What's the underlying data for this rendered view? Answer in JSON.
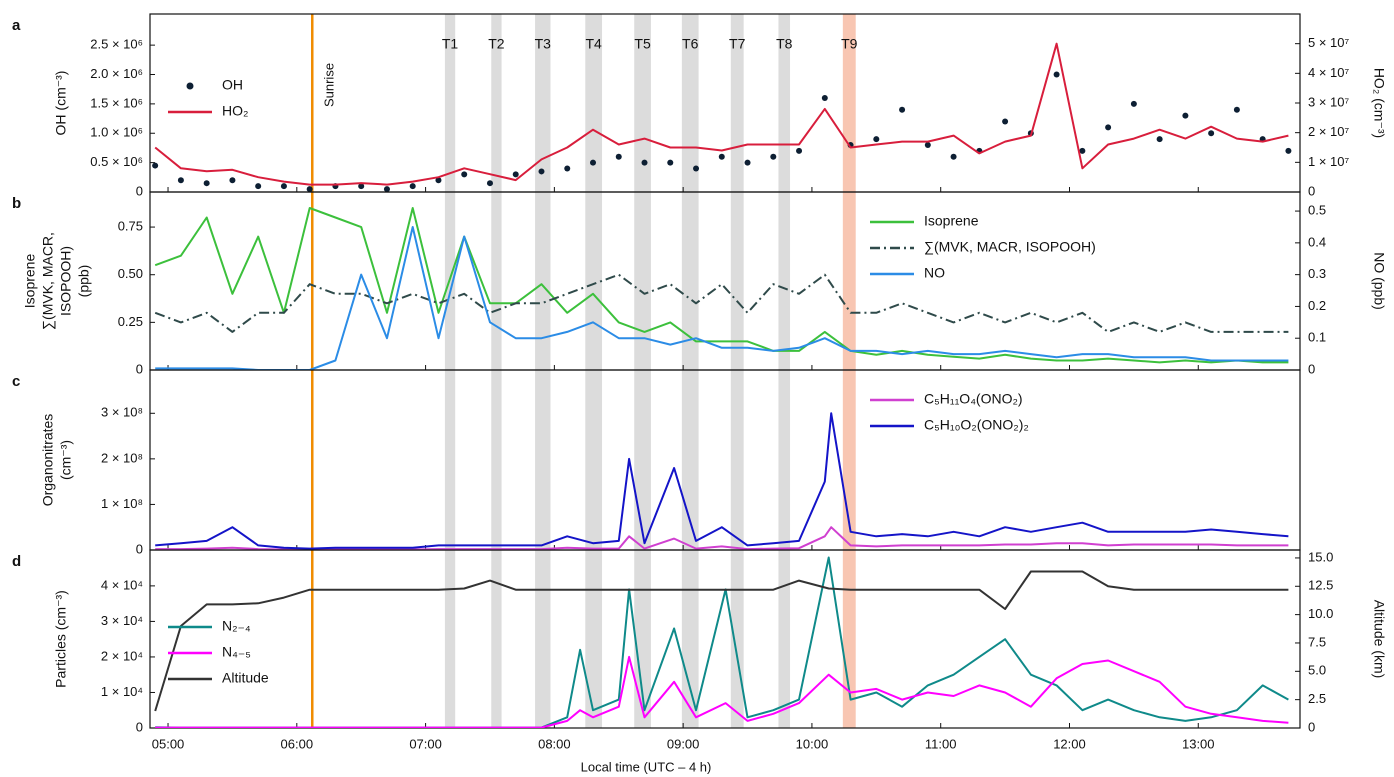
{
  "sunrise": {
    "x": 6.12,
    "label": "Sunrise",
    "color": "#f08c00"
  },
  "transects": [
    {
      "label": "T1",
      "start": 7.15,
      "end": 7.23,
      "color": "#dcdcdc"
    },
    {
      "label": "T2",
      "start": 7.51,
      "end": 7.59,
      "color": "#dcdcdc"
    },
    {
      "label": "T3",
      "start": 7.85,
      "end": 7.97,
      "color": "#dcdcdc"
    },
    {
      "label": "T4",
      "start": 8.24,
      "end": 8.37,
      "color": "#dcdcdc"
    },
    {
      "label": "T5",
      "start": 8.62,
      "end": 8.75,
      "color": "#dcdcdc"
    },
    {
      "label": "T6",
      "start": 8.99,
      "end": 9.12,
      "color": "#dcdcdc"
    },
    {
      "label": "T7",
      "start": 9.37,
      "end": 9.47,
      "color": "#dcdcdc"
    },
    {
      "label": "T8",
      "start": 9.74,
      "end": 9.83,
      "color": "#dcdcdc"
    },
    {
      "label": "T9",
      "start": 10.24,
      "end": 10.34,
      "color": "#f8c6b2"
    }
  ],
  "chart_data": [
    {
      "type": "line",
      "label": "a",
      "ylabel": [
        "OH (cm⁻³)"
      ],
      "y2label": "HO₂ (cm⁻³)",
      "legend": "center left",
      "xlim": [
        4.86,
        13.79
      ],
      "ylim": [
        0,
        3030000.0
      ],
      "y2lim": [
        0,
        60000000.0
      ],
      "yticks": [
        0,
        {
          "value": 500000.0,
          "label": "0.5 × 10⁶"
        },
        {
          "value": 1000000.0,
          "label": "1.0 × 10⁶"
        },
        {
          "value": 1500000.0,
          "label": "1.5 × 10⁶"
        },
        {
          "value": 2000000.0,
          "label": "2.0 × 10⁶"
        },
        {
          "value": 2500000.0,
          "label": "2.5 × 10⁶"
        }
      ],
      "y2ticks": [
        0,
        {
          "value": 10000000.0,
          "label": "1 × 10⁷"
        },
        {
          "value": 20000000.0,
          "label": "2 × 10⁷"
        },
        {
          "value": 30000000.0,
          "label": "3 × 10⁷"
        },
        {
          "value": 40000000.0,
          "label": "4 × 10⁷"
        },
        {
          "value": 50000000.0,
          "label": "5 × 10⁷"
        }
      ],
      "x": [
        4.9,
        5.1,
        5.3,
        5.5,
        5.7,
        5.9,
        6.1,
        6.3,
        6.5,
        6.7,
        6.9,
        7.1,
        7.3,
        7.5,
        7.7,
        7.9,
        8.1,
        8.3,
        8.5,
        8.7,
        8.9,
        9.1,
        9.3,
        9.5,
        9.7,
        9.9,
        10.1,
        10.3,
        10.5,
        10.7,
        10.9,
        11.1,
        11.3,
        11.5,
        11.7,
        11.9,
        12.1,
        12.3,
        12.5,
        12.7,
        12.9,
        13.1,
        13.3,
        13.5,
        13.7
      ],
      "series": [
        {
          "name": "OH",
          "color": "#0d1f33",
          "mark": "scatter",
          "values": [
            450000.0,
            200000.0,
            150000.0,
            200000.0,
            100000.0,
            100000.0,
            50000.0,
            100000.0,
            100000.0,
            50000.0,
            100000.0,
            200000.0,
            300000.0,
            150000.0,
            300000.0,
            350000.0,
            400000.0,
            500000.0,
            600000.0,
            500000.0,
            500000.0,
            400000.0,
            600000.0,
            500000.0,
            600000.0,
            700000.0,
            1600000.0,
            800000.0,
            900000.0,
            1400000.0,
            800000.0,
            600000.0,
            700000.0,
            1200000.0,
            1000000.0,
            2000000.0,
            700000.0,
            1100000.0,
            1500000.0,
            900000.0,
            1300000.0,
            1000000.0,
            1400000.0,
            900000.0,
            700000.0
          ]
        },
        {
          "name": "HO₂",
          "color": "#d81e3c",
          "axis": "y2",
          "values": [
            15000000.0,
            8000000.0,
            7000000.0,
            7500000.0,
            5000000.0,
            3500000.0,
            2500000.0,
            2500000.0,
            3000000.0,
            2500000.0,
            3500000.0,
            5000000.0,
            8000000.0,
            6000000.0,
            4000000.0,
            11000000.0,
            15000000.0,
            21000000.0,
            16000000.0,
            18000000.0,
            15000000.0,
            15000000.0,
            14000000.0,
            16000000.0,
            16000000.0,
            16000000.0,
            28000000.0,
            15000000.0,
            16000000.0,
            17000000.0,
            17000000.0,
            19000000.0,
            13000000.0,
            17000000.0,
            19000000.0,
            50000000.0,
            8000000.0,
            16000000.0,
            18000000.0,
            21000000.0,
            18000000.0,
            22000000.0,
            18000000.0,
            17000000.0,
            19000000.0
          ]
        }
      ]
    },
    {
      "type": "line",
      "label": "b",
      "ylabel": [
        "Isoprene",
        "∑(MVK, MACR,",
        "ISOPOOH)",
        "(ppb)"
      ],
      "y2label": "NO (ppb)",
      "legend": "upper right",
      "xlim": [
        4.86,
        13.79
      ],
      "ylim": [
        0,
        0.934
      ],
      "y2lim": [
        0,
        0.56
      ],
      "yticks": [
        0,
        0.25,
        {
          "value": 0.5,
          "label": "0.50"
        },
        0.75
      ],
      "y2ticks": [
        0,
        0.1,
        0.2,
        0.3,
        0.4,
        0.5
      ],
      "x": [
        4.9,
        5.1,
        5.3,
        5.5,
        5.7,
        5.9,
        6.1,
        6.3,
        6.5,
        6.7,
        6.9,
        7.1,
        7.3,
        7.5,
        7.7,
        7.9,
        8.1,
        8.3,
        8.5,
        8.7,
        8.9,
        9.1,
        9.3,
        9.5,
        9.7,
        9.9,
        10.1,
        10.3,
        10.5,
        10.7,
        10.9,
        11.1,
        11.3,
        11.5,
        11.7,
        11.9,
        12.1,
        12.3,
        12.5,
        12.7,
        12.9,
        13.1,
        13.3,
        13.5,
        13.7
      ],
      "series": [
        {
          "name": "Isoprene",
          "color": "#3cc03c",
          "values": [
            0.55,
            0.6,
            0.8,
            0.4,
            0.7,
            0.3,
            0.85,
            0.8,
            0.75,
            0.3,
            0.85,
            0.3,
            0.7,
            0.35,
            0.35,
            0.45,
            0.3,
            0.4,
            0.25,
            0.2,
            0.25,
            0.15,
            0.15,
            0.15,
            0.1,
            0.1,
            0.2,
            0.1,
            0.08,
            0.1,
            0.08,
            0.07,
            0.06,
            0.08,
            0.06,
            0.05,
            0.05,
            0.06,
            0.05,
            0.04,
            0.05,
            0.04,
            0.05,
            0.04,
            0.04
          ]
        },
        {
          "name": "∑(MVK, MACR, ISOPOOH)",
          "color": "#2f4a4a",
          "dash": "dash-dot",
          "values": [
            0.3,
            0.25,
            0.3,
            0.2,
            0.3,
            0.3,
            0.45,
            0.4,
            0.4,
            0.35,
            0.4,
            0.35,
            0.4,
            0.3,
            0.35,
            0.35,
            0.4,
            0.45,
            0.5,
            0.4,
            0.45,
            0.35,
            0.45,
            0.3,
            0.45,
            0.4,
            0.5,
            0.3,
            0.3,
            0.35,
            0.3,
            0.25,
            0.3,
            0.25,
            0.3,
            0.25,
            0.3,
            0.2,
            0.25,
            0.2,
            0.25,
            0.2,
            0.2,
            0.2,
            0.2
          ]
        },
        {
          "name": "NO",
          "color": "#2b8ce6",
          "axis": "y2",
          "values": [
            0.005,
            0.005,
            0.005,
            0.005,
            0,
            0,
            0,
            0.03,
            0.3,
            0.1,
            0.45,
            0.1,
            0.42,
            0.15,
            0.1,
            0.1,
            0.12,
            0.15,
            0.1,
            0.1,
            0.08,
            0.1,
            0.07,
            0.07,
            0.06,
            0.07,
            0.1,
            0.06,
            0.06,
            0.05,
            0.06,
            0.05,
            0.05,
            0.06,
            0.05,
            0.04,
            0.05,
            0.05,
            0.04,
            0.04,
            0.04,
            0.03,
            0.03,
            0.03,
            0.03
          ]
        }
      ]
    },
    {
      "type": "line",
      "label": "c",
      "ylabel": [
        "Organonitrates",
        "(cm⁻³)"
      ],
      "legend": "upper right",
      "xlim": [
        4.86,
        13.79
      ],
      "ylim": [
        0,
        395000000.0
      ],
      "yticks": [
        0,
        {
          "value": 100000000.0,
          "label": "1 × 10⁸"
        },
        {
          "value": 200000000.0,
          "label": "2 × 10⁸"
        },
        {
          "value": 300000000.0,
          "label": "3 × 10⁸"
        }
      ],
      "x": [
        4.9,
        5.1,
        5.3,
        5.5,
        5.7,
        5.9,
        6.1,
        6.3,
        6.5,
        6.7,
        6.9,
        7.1,
        7.3,
        7.5,
        7.7,
        7.9,
        8.1,
        8.3,
        8.5,
        8.58,
        8.7,
        8.93,
        9.1,
        9.3,
        9.5,
        9.7,
        9.9,
        10.1,
        10.15,
        10.3,
        10.5,
        10.7,
        10.9,
        11.1,
        11.3,
        11.5,
        11.7,
        11.9,
        12.1,
        12.3,
        12.5,
        12.7,
        12.9,
        13.1,
        13.3,
        13.5,
        13.7
      ],
      "series": [
        {
          "name": "C₅H₁₁O₄(ONO₂)",
          "color": "#d040d0",
          "values": [
            2000000.0,
            2000000.0,
            3000000.0,
            5000000.0,
            2000000.0,
            1000000.0,
            1000000.0,
            1000000.0,
            1000000.0,
            1000000.0,
            1000000.0,
            2000000.0,
            2000000.0,
            2000000.0,
            2000000.0,
            2000000.0,
            5000000.0,
            3000000.0,
            3000000.0,
            30000000.0,
            3000000.0,
            25000000.0,
            3000000.0,
            8000000.0,
            2000000.0,
            3000000.0,
            4000000.0,
            30000000.0,
            50000000.0,
            10000000.0,
            8000000.0,
            10000000.0,
            10000000.0,
            10000000.0,
            10000000.0,
            12000000.0,
            12000000.0,
            15000000.0,
            15000000.0,
            10000000.0,
            12000000.0,
            12000000.0,
            12000000.0,
            12000000.0,
            10000000.0,
            10000000.0,
            10000000.0
          ]
        },
        {
          "name": "C₅H₁₀O₂(ONO₂)₂",
          "color": "#1414c8",
          "values": [
            10000000.0,
            15000000.0,
            20000000.0,
            50000000.0,
            10000000.0,
            5000000.0,
            3000000.0,
            5000000.0,
            5000000.0,
            5000000.0,
            5000000.0,
            10000000.0,
            10000000.0,
            10000000.0,
            10000000.0,
            10000000.0,
            30000000.0,
            15000000.0,
            20000000.0,
            200000000.0,
            15000000.0,
            180000000.0,
            20000000.0,
            50000000.0,
            10000000.0,
            15000000.0,
            20000000.0,
            150000000.0,
            300000000.0,
            40000000.0,
            30000000.0,
            35000000.0,
            30000000.0,
            40000000.0,
            30000000.0,
            50000000.0,
            40000000.0,
            50000000.0,
            60000000.0,
            40000000.0,
            40000000.0,
            40000000.0,
            40000000.0,
            45000000.0,
            40000000.0,
            35000000.0,
            30000000.0
          ]
        }
      ]
    },
    {
      "type": "line",
      "label": "d",
      "ylabel": [
        "Particles (cm⁻³)"
      ],
      "y2label": "Altitude (km)",
      "legend": "center left",
      "xlabel": "Local time (UTC – 4 h)",
      "xlim": [
        4.86,
        13.79
      ],
      "ylim": [
        0,
        50100.0
      ],
      "y2lim": [
        0,
        15.7
      ],
      "xticks": [
        {
          "value": 5,
          "label": "05:00"
        },
        {
          "value": 6,
          "label": "06:00"
        },
        {
          "value": 7,
          "label": "07:00"
        },
        {
          "value": 8,
          "label": "08:00"
        },
        {
          "value": 9,
          "label": "09:00"
        },
        {
          "value": 10,
          "label": "10:00"
        },
        {
          "value": 11,
          "label": "11:00"
        },
        {
          "value": 12,
          "label": "12:00"
        },
        {
          "value": 13,
          "label": "13:00"
        }
      ],
      "yticks": [
        0,
        {
          "value": 10000.0,
          "label": "1 × 10⁴"
        },
        {
          "value": 20000.0,
          "label": "2 × 10⁴"
        },
        {
          "value": 30000.0,
          "label": "3 × 10⁴"
        },
        {
          "value": 40000.0,
          "label": "4 × 10⁴"
        }
      ],
      "y2ticks": [
        0,
        2.5,
        {
          "value": 5,
          "label": "5.0"
        },
        7.5,
        {
          "value": 10,
          "label": "10.0"
        },
        12.5,
        {
          "value": 15,
          "label": "15.0"
        }
      ],
      "x": [
        4.9,
        5.1,
        5.3,
        5.5,
        5.7,
        5.9,
        6.1,
        6.3,
        6.5,
        6.7,
        6.9,
        7.1,
        7.3,
        7.5,
        7.7,
        7.9,
        8.1,
        8.2,
        8.3,
        8.5,
        8.58,
        8.7,
        8.93,
        9.1,
        9.33,
        9.5,
        9.7,
        9.9,
        10.13,
        10.3,
        10.5,
        10.7,
        10.9,
        11.1,
        11.3,
        11.5,
        11.7,
        11.9,
        12.1,
        12.3,
        12.5,
        12.7,
        12.9,
        13.1,
        13.3,
        13.5,
        13.7
      ],
      "series": [
        {
          "name": "N₂₋₄",
          "color": "#0f8a8a",
          "values": [
            200,
            100,
            100,
            100,
            100,
            100,
            100,
            100,
            100,
            100,
            100,
            100,
            100,
            100,
            100,
            100,
            3000,
            22000,
            5000,
            8000,
            39000,
            5000,
            28000,
            5000,
            39000,
            3000,
            5000,
            8000,
            48000,
            8000,
            10000,
            6000,
            12000,
            15000,
            20000,
            25000,
            15000,
            12000,
            5000,
            8000,
            5000,
            3000,
            2000,
            3000,
            5000,
            12000,
            8000
          ]
        },
        {
          "name": "N₄₋₅",
          "color": "#ff00ff",
          "values": [
            100,
            100,
            100,
            100,
            100,
            100,
            100,
            100,
            100,
            100,
            100,
            100,
            100,
            100,
            100,
            100,
            2000,
            5000,
            3000,
            6000,
            20000,
            3000,
            13000,
            3000,
            7000,
            2000,
            4000,
            7000,
            15000,
            10000,
            11000,
            8000,
            10000,
            9000,
            12000,
            10000,
            6000,
            14000,
            18000,
            19000,
            16000,
            13000,
            6000,
            4000,
            3000,
            2000,
            1500
          ]
        },
        {
          "name": "Altitude",
          "color": "#333333",
          "axis": "y2",
          "values": [
            1.5,
            9.0,
            10.9,
            10.9,
            11.0,
            11.5,
            12.2,
            12.2,
            12.2,
            12.2,
            12.2,
            12.2,
            12.3,
            13.0,
            12.2,
            12.2,
            12.2,
            12.2,
            12.2,
            12.2,
            12.2,
            12.2,
            12.2,
            12.2,
            12.2,
            12.2,
            12.2,
            13.0,
            12.3,
            12.2,
            12.2,
            12.2,
            12.2,
            12.2,
            12.2,
            10.5,
            13.8,
            13.8,
            13.8,
            12.5,
            12.2,
            12.2,
            12.2,
            12.2,
            12.2,
            12.2,
            12.2
          ]
        }
      ]
    }
  ]
}
